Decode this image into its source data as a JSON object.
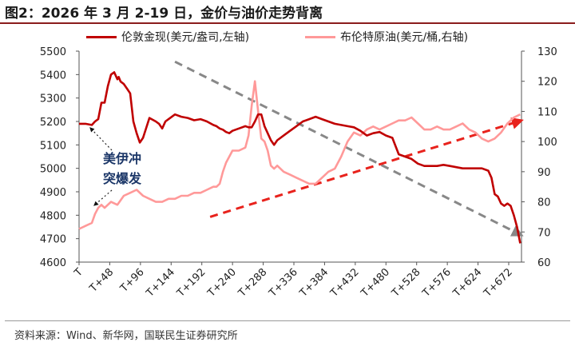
{
  "title": "图2：2026 年 3 月 2-19 日，金价与油价走势背离",
  "source": "资料来源：Wind、新华网，国联民生证券研究所",
  "annotation": {
    "line1": "美伊冲",
    "line2": "突爆发"
  },
  "colors": {
    "gold": "#c00000",
    "oil": "#ff9999",
    "trend_gold_down": "#888888",
    "trend_oil_up": "#e8221c",
    "frame": "#555555"
  },
  "chart_data": {
    "type": "line",
    "x_tick_labels": [
      "T",
      "T+48",
      "T+96",
      "T+144",
      "T+192",
      "T+240",
      "T+288",
      "T+336",
      "T+384",
      "T+432",
      "T+480",
      "T+528",
      "T+576",
      "T+624",
      "T+672"
    ],
    "x_range": [
      0,
      692
    ],
    "y_left": {
      "label": "美元/盎司",
      "min": 4600,
      "max": 5500,
      "ticks": [
        4600,
        4700,
        4800,
        4900,
        5000,
        5100,
        5200,
        5300,
        5400,
        5500
      ]
    },
    "y_right": {
      "label": "美元/桶",
      "min": 60,
      "max": 130,
      "ticks": [
        60,
        70,
        80,
        90,
        100,
        110,
        120,
        130
      ]
    },
    "legend_position": "top",
    "series": [
      {
        "name": "伦敦金现(美元/盎司,左轴)",
        "axis": "left",
        "x": [
          0,
          10,
          20,
          25,
          30,
          35,
          40,
          45,
          50,
          55,
          60,
          62,
          65,
          70,
          75,
          80,
          85,
          90,
          95,
          100,
          110,
          120,
          125,
          130,
          135,
          140,
          150,
          160,
          170,
          180,
          190,
          200,
          210,
          215,
          220,
          225,
          230,
          235,
          240,
          250,
          260,
          265,
          270,
          275,
          280,
          285,
          290,
          295,
          300,
          305,
          310,
          320,
          330,
          340,
          350,
          360,
          370,
          380,
          390,
          400,
          410,
          420,
          430,
          440,
          450,
          460,
          470,
          480,
          490,
          500,
          510,
          520,
          530,
          540,
          550,
          560,
          570,
          580,
          590,
          600,
          610,
          620,
          630,
          640,
          645,
          650,
          655,
          660,
          665,
          670,
          675,
          680,
          685,
          690
        ],
        "y": [
          5190,
          5190,
          5185,
          5200,
          5210,
          5280,
          5280,
          5350,
          5400,
          5410,
          5380,
          5390,
          5370,
          5360,
          5340,
          5320,
          5200,
          5150,
          5110,
          5130,
          5215,
          5200,
          5190,
          5170,
          5200,
          5210,
          5230,
          5220,
          5215,
          5205,
          5210,
          5200,
          5185,
          5180,
          5170,
          5165,
          5155,
          5150,
          5160,
          5170,
          5180,
          5175,
          5175,
          5200,
          5230,
          5230,
          5180,
          5150,
          5120,
          5100,
          5120,
          5140,
          5160,
          5180,
          5200,
          5210,
          5220,
          5210,
          5200,
          5190,
          5185,
          5180,
          5175,
          5160,
          5140,
          5150,
          5155,
          5140,
          5130,
          5060,
          5050,
          5040,
          5020,
          5010,
          5010,
          5010,
          5015,
          5010,
          5005,
          5000,
          5000,
          5000,
          5000,
          4990,
          4960,
          4890,
          4880,
          4850,
          4840,
          4850,
          4840,
          4800,
          4750,
          4680
        ]
      },
      {
        "name": "布伦特原油(美元/桶,右轴)",
        "axis": "right",
        "x": [
          0,
          10,
          20,
          25,
          30,
          35,
          40,
          45,
          50,
          60,
          70,
          80,
          90,
          100,
          110,
          120,
          130,
          140,
          150,
          160,
          170,
          180,
          190,
          200,
          210,
          215,
          220,
          225,
          230,
          235,
          240,
          250,
          260,
          265,
          270,
          275,
          280,
          285,
          290,
          295,
          300,
          305,
          310,
          320,
          330,
          340,
          350,
          360,
          370,
          380,
          390,
          400,
          410,
          420,
          430,
          440,
          450,
          460,
          470,
          480,
          490,
          500,
          510,
          520,
          530,
          540,
          550,
          560,
          570,
          580,
          590,
          600,
          610,
          620,
          630,
          640,
          650,
          660,
          670,
          680,
          690
        ],
        "y": [
          71,
          72,
          73,
          76,
          78,
          79,
          78,
          79,
          80,
          79,
          82,
          83,
          84,
          82,
          81,
          80,
          80,
          81,
          81,
          82,
          82,
          83,
          83,
          84,
          85,
          85,
          86,
          90,
          93,
          95,
          97,
          97,
          98,
          102,
          112,
          120,
          110,
          101,
          100,
          97,
          92,
          91,
          92,
          90,
          89,
          88,
          87,
          86,
          86,
          88,
          90,
          91,
          95,
          100,
          103,
          102,
          104,
          105,
          104,
          105,
          106,
          107,
          107,
          108,
          106,
          104,
          104,
          105,
          104,
          104,
          105,
          106,
          104,
          103,
          101,
          100,
          101,
          103,
          106,
          108,
          109
        ]
      }
    ],
    "trend_lines": [
      {
        "name": "gold-downtrend",
        "axis": "left",
        "x": [
          150,
          692
        ],
        "y": [
          5455,
          4715
        ],
        "style": "dashed",
        "arrow": "end"
      },
      {
        "name": "oil-uptrend",
        "axis": "right",
        "x": [
          205,
          692
        ],
        "y": [
          75,
          107
        ],
        "style": "dashed",
        "arrow": "end"
      }
    ]
  }
}
